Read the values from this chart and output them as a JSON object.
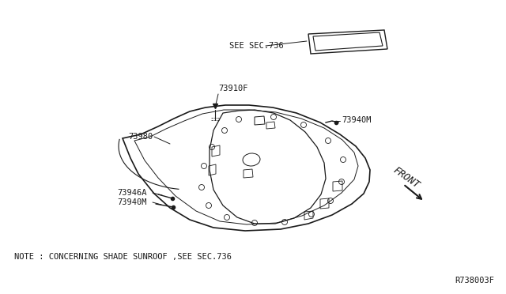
{
  "bg_color": "#ffffff",
  "line_color": "#1a1a1a",
  "text_color": "#1a1a1a",
  "note_text": "NOTE : CONCERNING SHADE SUNROOF ,SEE SEC.736",
  "ref_code": "R738003F",
  "labels": {
    "see_sec": "SEE SEC.736",
    "p1": "73910F",
    "p2": "73980",
    "p3": "73946A",
    "p4_left": "73940M",
    "p4_right": "73940M",
    "front": "FRONT"
  },
  "font_size_label": 7.5,
  "font_size_note": 7.5,
  "font_size_ref": 7.5,
  "font_size_front": 9
}
